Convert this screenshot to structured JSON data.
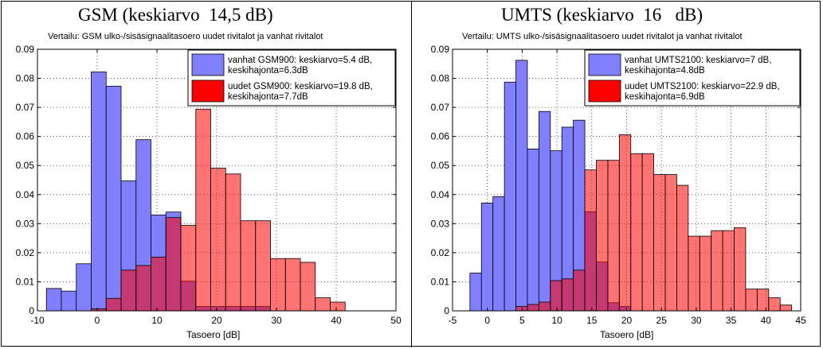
{
  "chart_data": [
    {
      "type": "bar",
      "title": "GSM (keskiarvo  14,5 dB)",
      "subtitle": "Vertailu: GSM ulko-/sisäsignaalitasoero uudet rivitalot ja vanhat rivitalot",
      "xlabel": "Tasoero [dB]",
      "ylabel": "",
      "xlim": [
        -10,
        50
      ],
      "ylim": [
        0,
        0.09
      ],
      "x_ticks": [
        -10,
        0,
        10,
        20,
        30,
        40,
        50
      ],
      "x_tick_labels": [
        "-10",
        "0",
        "10",
        "20",
        "30",
        "40",
        "50"
      ],
      "y_ticks": [
        0,
        0.01,
        0.02,
        0.03,
        0.04,
        0.05,
        0.06,
        0.07,
        0.08,
        0.09
      ],
      "y_tick_labels": [
        "0",
        "0.01",
        "0.02",
        "0.03",
        "0.04",
        "0.05",
        "0.06",
        "0.07",
        "0.08",
        "0.09"
      ],
      "bin_width": 2.5,
      "grid": true,
      "legend_position": "top-right",
      "series": [
        {
          "name": "vanhat GSM900: keskiarvo=5.4 dB, keskihajonta=6.3dB",
          "legend_lines": [
            "vanhat GSM900: keskiarvo=5.4 dB,",
            "keskihajonta=6.3dB"
          ],
          "color": "#7f7fff",
          "bin_starts": [
            -8.5,
            -6,
            -3.5,
            -1,
            1.5,
            4,
            6.5,
            9,
            11.5,
            14,
            16.5,
            19,
            21.5,
            24,
            26.5
          ],
          "values": [
            0.0077,
            0.0068,
            0.0162,
            0.0822,
            0.0773,
            0.0447,
            0.0589,
            0.033,
            0.034,
            0.0102,
            0.0015,
            0.0015,
            0.0015,
            0.0015,
            0.0015
          ]
        },
        {
          "name": "uudet GSM900: keskiarvo=19.8 dB, keskihajonta=7.7dB",
          "legend_lines": [
            "uudet GSM900: keskiarvo=19.8 dB,",
            "keskihajonta=7.7dB"
          ],
          "color": "#ff0000",
          "bin_starts": [
            -1,
            1.5,
            4,
            6.5,
            9,
            11.5,
            14,
            16.5,
            19,
            21.5,
            24,
            26.5,
            29,
            31.5,
            34,
            36.5,
            39
          ],
          "values": [
            0.0007,
            0.0043,
            0.014,
            0.0156,
            0.0185,
            0.0321,
            0.0294,
            0.0694,
            0.0491,
            0.0471,
            0.031,
            0.031,
            0.018,
            0.018,
            0.0167,
            0.0045,
            0.003
          ]
        }
      ]
    },
    {
      "type": "bar",
      "title": "UMTS (keskiarvo  16   dB)",
      "subtitle": "Vertailu: UMTS ulko-/sisäsignaalitasoero uudet rivitalot ja vanhat rivitalot",
      "xlabel": "Tasoero [dB]",
      "ylabel": "",
      "xlim": [
        -5,
        45
      ],
      "ylim": [
        0,
        0.09
      ],
      "x_ticks": [
        -5,
        0,
        5,
        10,
        15,
        20,
        25,
        30,
        35,
        40,
        45
      ],
      "x_tick_labels": [
        "-5",
        "0",
        "5",
        "10",
        "15",
        "20",
        "25",
        "30",
        "35",
        "40",
        "45"
      ],
      "y_ticks": [
        0,
        0.01,
        0.02,
        0.03,
        0.04,
        0.05,
        0.06,
        0.07,
        0.08,
        0.09
      ],
      "y_tick_labels": [
        "0",
        "0.01",
        "0.02",
        "0.03",
        "0.04",
        "0.05",
        "0.06",
        "0.07",
        "0.08",
        "0.09"
      ],
      "bin_width": 1.65,
      "grid": true,
      "legend_position": "top-right",
      "series": [
        {
          "name": "vanhat UMTS2100: keskiarvo=7 dB, keskihajonta=4.8dB",
          "legend_lines": [
            "vanhat UMTS2100: keskiarvo=7 dB,",
            "keskihajonta=4.8dB"
          ],
          "color": "#7f7fff",
          "bin_starts": [
            -2.5,
            -0.85,
            0.8,
            2.45,
            4.1,
            5.75,
            7.4,
            9.05,
            10.7,
            12.35,
            14.0,
            15.65,
            17.3,
            18.95
          ],
          "values": [
            0.013,
            0.0371,
            0.0393,
            0.0787,
            0.0862,
            0.0557,
            0.0686,
            0.0551,
            0.0632,
            0.0656,
            0.0341,
            0.0168,
            0.0028,
            0.0015
          ]
        },
        {
          "name": "uudet UMTS2100: keskiarvo=22.9 dB, keskihajonta=6.9dB",
          "legend_lines": [
            "uudet UMTS2100: keskiarvo=22.9 dB,",
            "keskihajonta=6.9dB"
          ],
          "color": "#ff0000",
          "bin_starts": [
            4.1,
            5.75,
            7.4,
            9.05,
            10.7,
            12.35,
            14.0,
            15.65,
            17.3,
            18.95,
            20.6,
            22.25,
            23.9,
            25.55,
            27.2,
            28.85,
            30.5,
            32.15,
            33.8,
            35.45,
            37.1,
            38.75,
            40.4,
            42.05
          ],
          "values": [
            0.0015,
            0.0022,
            0.003,
            0.0104,
            0.011,
            0.014,
            0.0485,
            0.0518,
            0.0518,
            0.0606,
            0.0541,
            0.0541,
            0.0469,
            0.0469,
            0.0432,
            0.0257,
            0.0257,
            0.0276,
            0.0276,
            0.0286,
            0.0075,
            0.0075,
            0.0045,
            0.002
          ]
        }
      ]
    }
  ]
}
